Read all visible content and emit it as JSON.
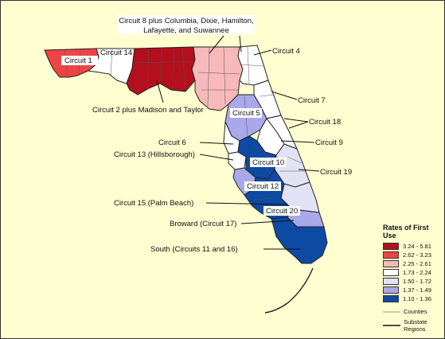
{
  "map": {
    "labels": {
      "c1": "Circuit 1",
      "c14": "Circuit 14",
      "c8_line1": "Circuit 8 plus Columbia, Dixie, Hamilton,",
      "c8_line2": "Lafayette, and Suwannee",
      "c4": "Circuit 4",
      "c2": "Circuit 2 plus Madison and Taylor",
      "c7": "Circuit 7",
      "c5": "Circuit 5",
      "c18": "Circuit 18",
      "c6": "Circuit 6",
      "c9": "Circuit 9",
      "c13": "Circuit 13 (Hillsborough)",
      "c10": "Circuit 10",
      "c19": "Circuit 19",
      "c12": "Circuit 12",
      "c15": "Circuit 15 (Palm Beach)",
      "c20": "Circuit 20",
      "c17": "Broward (Circuit 17)",
      "south": "South (Circuits 11 and 16)"
    }
  },
  "legend": {
    "title_line1": "Rates of First",
    "title_line2": "Use",
    "classes": [
      {
        "range": "3.24 - 5.81",
        "color": "#b30f1c"
      },
      {
        "range": "2.62 - 3.23",
        "color": "#ee4444"
      },
      {
        "range": "2.25 - 2.61",
        "color": "#f7b9b9"
      },
      {
        "range": "1.73 - 2.24",
        "color": "#ffffff"
      },
      {
        "range": "1.50 - 1.72",
        "color": "#e2e2f4"
      },
      {
        "range": "1.37 - 1.49",
        "color": "#a8a8ea"
      },
      {
        "range": "1.10 - 1.36",
        "color": "#0d4aa4"
      }
    ],
    "counties_label": "Counties",
    "substate_line1": "Substate",
    "substate_line2": "Regions"
  }
}
